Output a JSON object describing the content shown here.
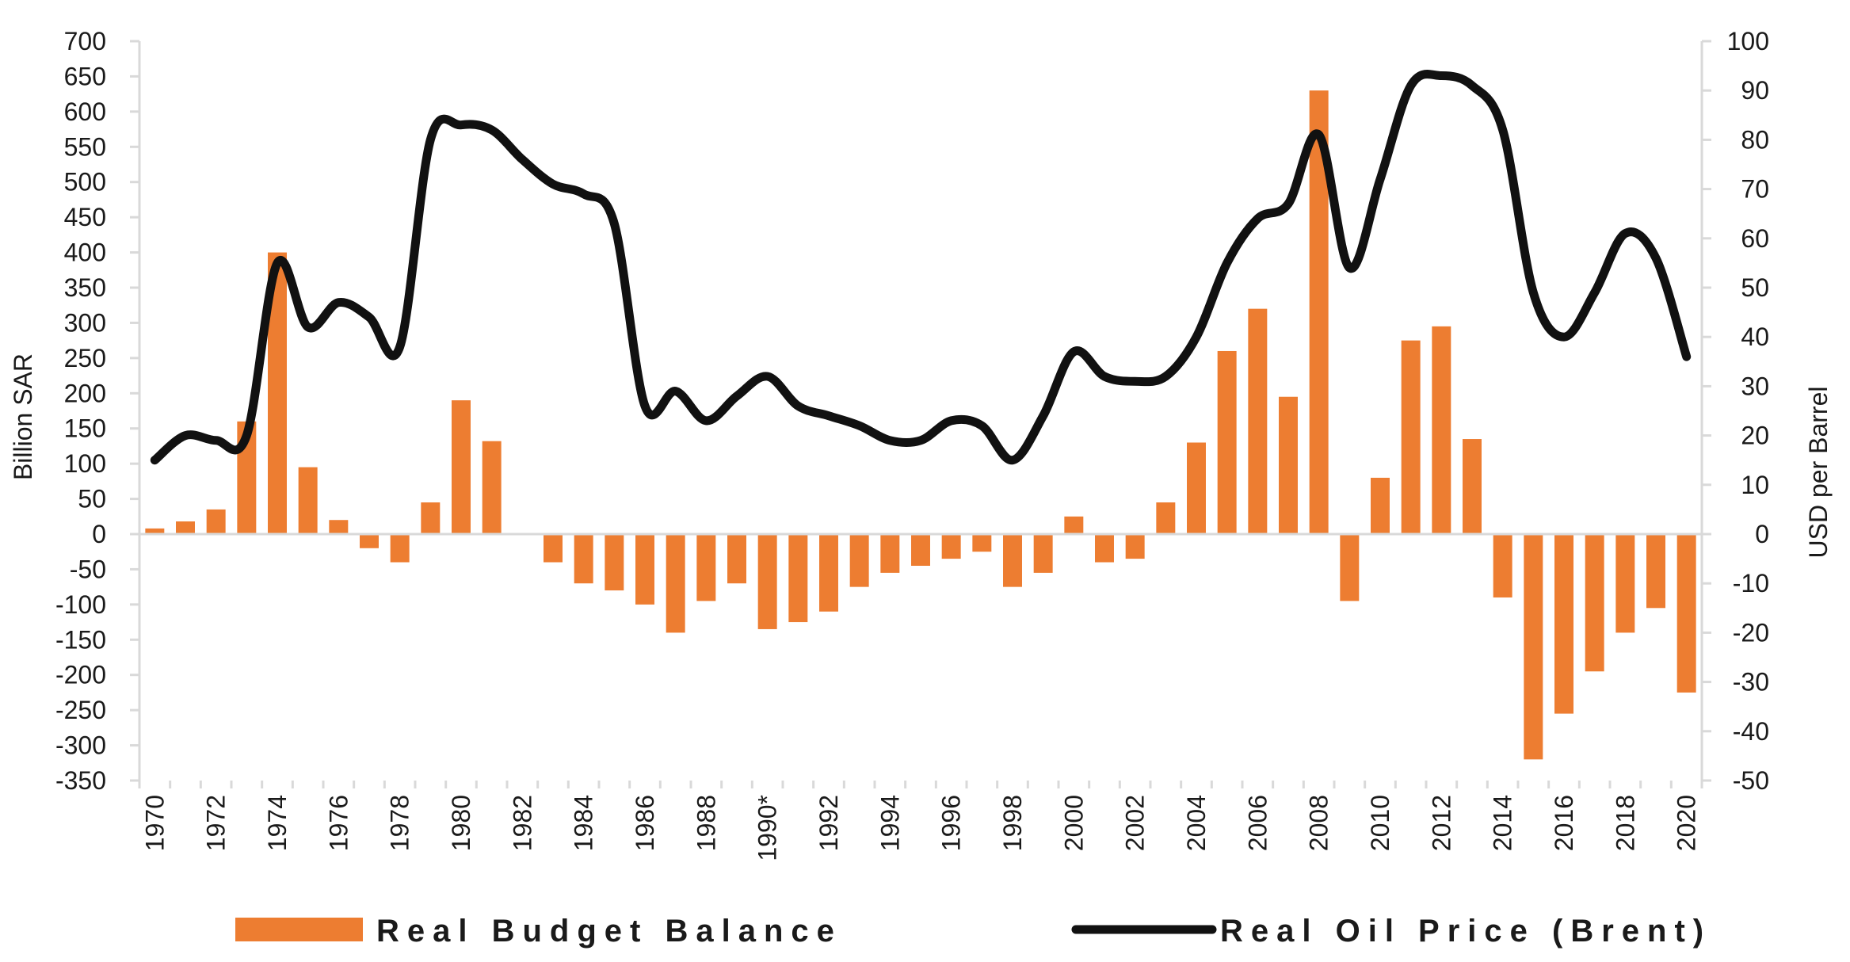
{
  "chart_data": {
    "type": "bar+line",
    "title": "",
    "years": [
      1970,
      1971,
      1972,
      1973,
      1974,
      1975,
      1976,
      1977,
      1978,
      1979,
      1980,
      1981,
      1982,
      1983,
      1984,
      1985,
      1986,
      1987,
      1988,
      1989,
      1990,
      1991,
      1992,
      1993,
      1994,
      1995,
      1996,
      1997,
      1998,
      1999,
      2000,
      2001,
      2002,
      2003,
      2004,
      2005,
      2006,
      2007,
      2008,
      2009,
      2010,
      2011,
      2012,
      2013,
      2014,
      2015,
      2016,
      2017,
      2018,
      2019,
      2020
    ],
    "x_tick_labels": [
      "1970",
      "1972",
      "1974",
      "1976",
      "1978",
      "1980",
      "1982",
      "1984",
      "1986",
      "1988",
      "1990*",
      "1992",
      "1994",
      "1996",
      "1998",
      "2000",
      "2002",
      "2004",
      "2006",
      "2008",
      "2010",
      "2012",
      "2014",
      "2016",
      "2018",
      "2020"
    ],
    "series": [
      {
        "name": "Real Budget Balance",
        "type": "bar",
        "axis": "left",
        "color": "#ED7D31",
        "values": [
          8,
          18,
          35,
          160,
          400,
          95,
          20,
          -20,
          -40,
          45,
          190,
          132,
          0,
          -40,
          -70,
          -80,
          -100,
          -140,
          -95,
          -70,
          -135,
          -125,
          -110,
          -75,
          -55,
          -45,
          -35,
          -25,
          -75,
          -55,
          25,
          -40,
          -35,
          45,
          130,
          260,
          320,
          195,
          630,
          -95,
          80,
          275,
          295,
          135,
          -90,
          -320,
          -255,
          -195,
          -140,
          -105,
          -225
        ]
      },
      {
        "name": "Real Oil Price (Brent)",
        "type": "line",
        "axis": "right",
        "color": "#111111",
        "values": [
          15,
          20,
          19,
          20,
          55,
          42,
          47,
          44,
          38,
          80,
          83,
          82,
          76,
          71,
          69,
          63,
          26,
          29,
          23,
          28,
          32,
          26,
          24,
          22,
          19,
          19,
          23,
          22,
          15,
          24,
          37,
          32,
          31,
          32,
          40,
          55,
          64,
          67,
          81,
          54,
          72,
          91,
          93,
          91,
          82,
          49,
          40,
          49,
          61,
          56,
          36
        ]
      }
    ],
    "y_left": {
      "label": "Billion SAR",
      "min": -350,
      "max": 700,
      "ticks": [
        700,
        650,
        600,
        550,
        500,
        450,
        400,
        350,
        300,
        250,
        200,
        150,
        100,
        50,
        0,
        -50,
        -100,
        -150,
        -200,
        -250,
        -300,
        -350
      ]
    },
    "y_right": {
      "label": "USD per Barrel",
      "min": -50,
      "max": 100,
      "ticks": [
        100,
        90,
        80,
        70,
        60,
        50,
        40,
        30,
        20,
        10,
        0,
        -10,
        -20,
        -30,
        -40,
        -50
      ]
    },
    "legend": {
      "position": "bottom",
      "bar_label": "Real Budget Balance",
      "line_label": "Real Oil Price (Brent)"
    },
    "grid": false
  }
}
